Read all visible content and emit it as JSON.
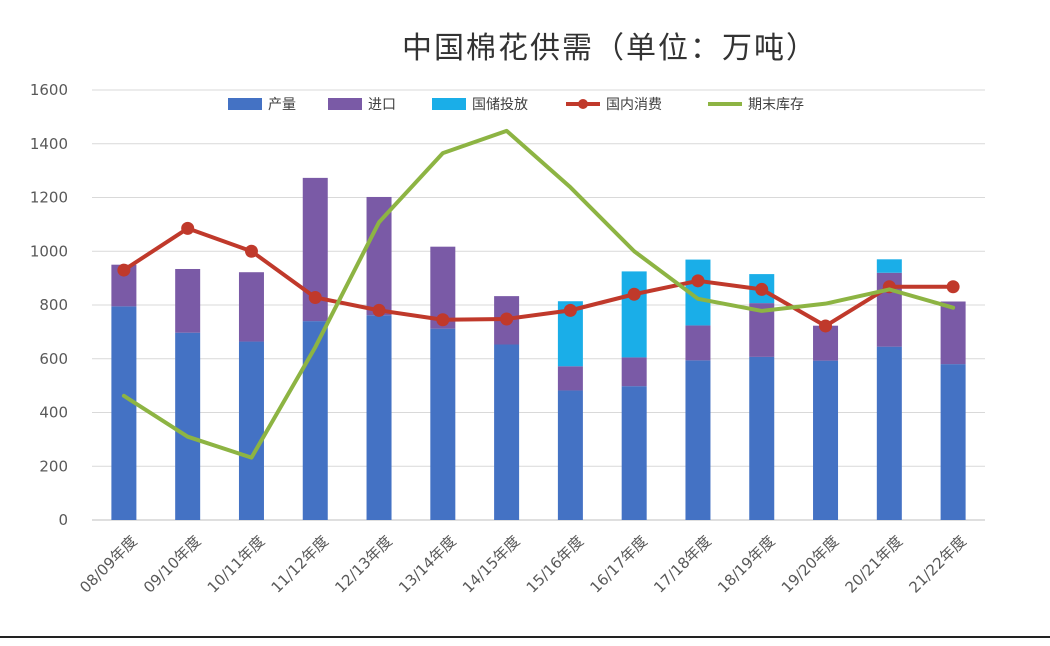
{
  "chart_data": {
    "type": "bar",
    "title": "中国棉花供需（单位：万吨）",
    "categories": [
      "08/09年度",
      "09/10年度",
      "10/11年度",
      "11/12年度",
      "12/13年度",
      "13/14年度",
      "14/15年度",
      "15/16年度",
      "16/17年度",
      "17/18年度",
      "18/19年度",
      "19/20年度",
      "20/21年度",
      "21/22年度"
    ],
    "ylim": [
      0,
      1600
    ],
    "yticks": [
      0,
      200,
      400,
      600,
      800,
      1000,
      1200,
      1400,
      1600
    ],
    "grid": true,
    "legend_position": "top",
    "stacked_bar_series": [
      {
        "name": "产量",
        "color": "#4472C4",
        "values": [
          795,
          697,
          664,
          740,
          762,
          712,
          653,
          482,
          498,
          594,
          607,
          593,
          645,
          580
        ]
      },
      {
        "name": "进口",
        "color": "#7A5AA6",
        "values": [
          155,
          237,
          258,
          533,
          440,
          305,
          180,
          90,
          107,
          130,
          200,
          130,
          275,
          233
        ]
      },
      {
        "name": "国储投放",
        "color": "#1AAEE8",
        "values": [
          0,
          0,
          0,
          0,
          0,
          0,
          0,
          242,
          320,
          245,
          108,
          0,
          50,
          0
        ]
      }
    ],
    "line_series": [
      {
        "name": "国内消费",
        "color": "#C0392B",
        "markers": true,
        "values": [
          930,
          1085,
          1000,
          828,
          780,
          745,
          748,
          780,
          840,
          890,
          858,
          722,
          868,
          868
        ]
      },
      {
        "name": "期末库存",
        "color": "#8DB443",
        "markers": false,
        "values": [
          462,
          310,
          232,
          643,
          1108,
          1365,
          1448,
          1238,
          1000,
          823,
          778,
          805,
          858,
          790
        ]
      }
    ]
  }
}
